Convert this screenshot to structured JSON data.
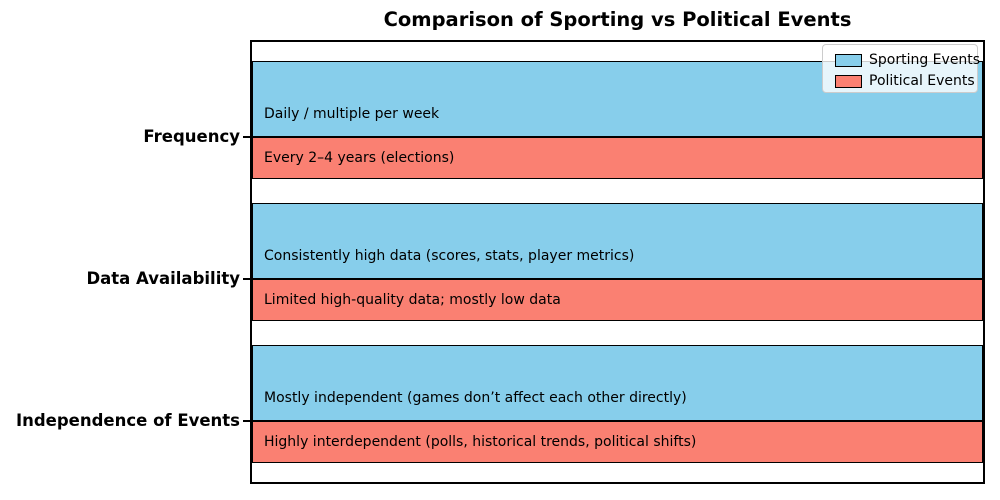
{
  "chart_data": {
    "type": "bar",
    "orientation": "horizontal",
    "title": "Comparison of Sporting vs Political Events",
    "categories": [
      "Frequency",
      "Data Availability",
      "Independence of Events"
    ],
    "series": [
      {
        "name": "Sporting Events",
        "color": "#87CEEB",
        "values": [
          1,
          1,
          1
        ],
        "labels": [
          "Daily / multiple per week",
          "Consistently high data (scores, stats, player metrics)",
          "Mostly independent (games don’t affect each other directly)"
        ]
      },
      {
        "name": "Political Events",
        "color": "#FA8072",
        "values": [
          1,
          1,
          1
        ],
        "labels": [
          "Every 2–4 years (elections)",
          "Limited high-quality data; mostly low data",
          "Highly interdependent (polls, historical trends, political shifts)"
        ]
      }
    ],
    "xlim": [
      0,
      1
    ],
    "x_axis_visible": false,
    "grid": false,
    "bar_edge_color": "#000000",
    "legend": {
      "position": "upper right",
      "entries": [
        "Sporting Events",
        "Political Events"
      ]
    }
  }
}
